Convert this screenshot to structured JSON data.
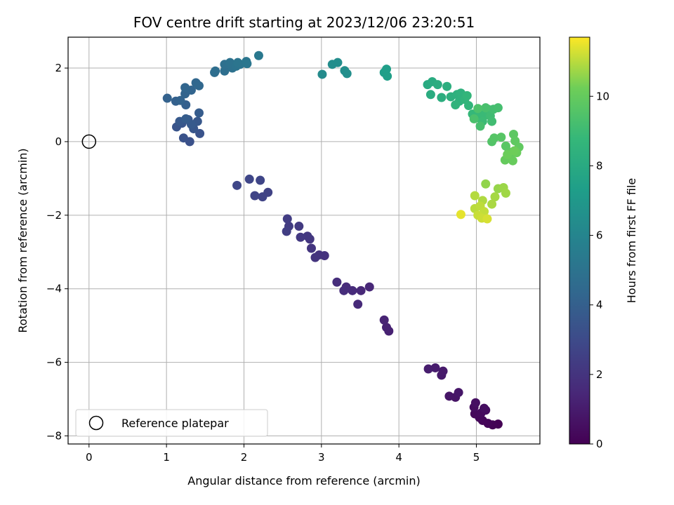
{
  "chart_data": {
    "type": "scatter",
    "title": "FOV centre drift starting at 2023/12/06 23:20:51",
    "xlabel": "Angular distance from reference (arcmin)",
    "ylabel": "Rotation from reference (arcmin)",
    "xlim": [
      -0.27,
      5.82
    ],
    "ylim": [
      -8.22,
      2.84
    ],
    "x_ticks": [
      0,
      1,
      2,
      3,
      4,
      5
    ],
    "y_ticks": [
      -8,
      -6,
      -4,
      -2,
      0,
      2
    ],
    "grid": true,
    "legend": {
      "placement": "lower-left",
      "entries": [
        "Reference platepar"
      ]
    },
    "reference_point": {
      "x": 0,
      "y": 0
    },
    "colorbar": {
      "label": "Hours from first FF file",
      "colormap": "viridis",
      "range": [
        0,
        11.7
      ],
      "ticks": [
        0,
        2,
        4,
        6,
        8,
        10
      ]
    },
    "points": [
      {
        "x": 5.28,
        "y": -7.68,
        "t": 0.05
      },
      {
        "x": 5.21,
        "y": -7.7,
        "t": 0.1
      },
      {
        "x": 5.15,
        "y": -7.66,
        "t": 0.15
      },
      {
        "x": 5.08,
        "y": -7.58,
        "t": 0.2
      },
      {
        "x": 5.04,
        "y": -7.5,
        "t": 0.25
      },
      {
        "x": 4.98,
        "y": -7.4,
        "t": 0.3
      },
      {
        "x": 5.06,
        "y": -7.38,
        "t": 0.35
      },
      {
        "x": 5.12,
        "y": -7.3,
        "t": 0.4
      },
      {
        "x": 4.97,
        "y": -7.22,
        "t": 0.45
      },
      {
        "x": 5.1,
        "y": -7.25,
        "t": 0.5
      },
      {
        "x": 4.99,
        "y": -7.1,
        "t": 0.55
      },
      {
        "x": 4.73,
        "y": -6.95,
        "t": 0.7
      },
      {
        "x": 4.65,
        "y": -6.92,
        "t": 0.75
      },
      {
        "x": 4.77,
        "y": -6.82,
        "t": 0.8
      },
      {
        "x": 4.55,
        "y": -6.35,
        "t": 0.9
      },
      {
        "x": 4.57,
        "y": -6.24,
        "t": 0.95
      },
      {
        "x": 4.47,
        "y": -6.15,
        "t": 1.0
      },
      {
        "x": 4.38,
        "y": -6.18,
        "t": 1.05
      },
      {
        "x": 3.87,
        "y": -5.15,
        "t": 1.2
      },
      {
        "x": 3.84,
        "y": -5.05,
        "t": 1.25
      },
      {
        "x": 3.81,
        "y": -4.85,
        "t": 1.3
      },
      {
        "x": 3.62,
        "y": -3.95,
        "t": 1.45
      },
      {
        "x": 3.51,
        "y": -4.05,
        "t": 1.5
      },
      {
        "x": 3.47,
        "y": -4.42,
        "t": 1.55
      },
      {
        "x": 3.4,
        "y": -4.05,
        "t": 1.6
      },
      {
        "x": 3.32,
        "y": -3.95,
        "t": 1.65
      },
      {
        "x": 3.29,
        "y": -4.05,
        "t": 1.7
      },
      {
        "x": 3.2,
        "y": -3.82,
        "t": 1.75
      },
      {
        "x": 3.04,
        "y": -3.1,
        "t": 1.9
      },
      {
        "x": 2.97,
        "y": -3.08,
        "t": 1.95
      },
      {
        "x": 2.92,
        "y": -3.15,
        "t": 2.0
      },
      {
        "x": 2.87,
        "y": -2.9,
        "t": 2.05
      },
      {
        "x": 2.85,
        "y": -2.65,
        "t": 2.1
      },
      {
        "x": 2.82,
        "y": -2.57,
        "t": 2.15
      },
      {
        "x": 2.73,
        "y": -2.6,
        "t": 2.2
      },
      {
        "x": 2.71,
        "y": -2.3,
        "t": 2.25
      },
      {
        "x": 2.58,
        "y": -2.3,
        "t": 2.35
      },
      {
        "x": 2.56,
        "y": -2.1,
        "t": 2.4
      },
      {
        "x": 2.55,
        "y": -2.44,
        "t": 2.45
      },
      {
        "x": 2.31,
        "y": -1.38,
        "t": 2.6
      },
      {
        "x": 2.24,
        "y": -1.5,
        "t": 2.65
      },
      {
        "x": 2.14,
        "y": -1.47,
        "t": 2.7
      },
      {
        "x": 2.21,
        "y": -1.05,
        "t": 2.75
      },
      {
        "x": 2.07,
        "y": -1.02,
        "t": 2.8
      },
      {
        "x": 1.91,
        "y": -1.19,
        "t": 2.85
      },
      {
        "x": 1.3,
        "y": 0.0,
        "t": 3.3
      },
      {
        "x": 1.22,
        "y": 0.1,
        "t": 3.35
      },
      {
        "x": 1.43,
        "y": 0.22,
        "t": 3.4
      },
      {
        "x": 1.13,
        "y": 0.4,
        "t": 3.45
      },
      {
        "x": 1.2,
        "y": 0.5,
        "t": 3.5
      },
      {
        "x": 1.35,
        "y": 0.35,
        "t": 3.55
      },
      {
        "x": 1.28,
        "y": 0.6,
        "t": 3.6
      },
      {
        "x": 1.4,
        "y": 0.55,
        "t": 3.65
      },
      {
        "x": 1.17,
        "y": 0.55,
        "t": 3.7
      },
      {
        "x": 1.32,
        "y": 0.47,
        "t": 3.75
      },
      {
        "x": 1.42,
        "y": 0.78,
        "t": 3.8
      },
      {
        "x": 1.25,
        "y": 0.62,
        "t": 3.85
      },
      {
        "x": 1.25,
        "y": 1.0,
        "t": 4.0
      },
      {
        "x": 1.12,
        "y": 1.1,
        "t": 4.05
      },
      {
        "x": 1.01,
        "y": 1.18,
        "t": 4.1
      },
      {
        "x": 1.18,
        "y": 1.12,
        "t": 4.15
      },
      {
        "x": 1.24,
        "y": 1.3,
        "t": 4.2
      },
      {
        "x": 1.32,
        "y": 1.4,
        "t": 4.25
      },
      {
        "x": 1.24,
        "y": 1.47,
        "t": 4.3
      },
      {
        "x": 1.38,
        "y": 1.6,
        "t": 4.35
      },
      {
        "x": 1.42,
        "y": 1.52,
        "t": 4.4
      },
      {
        "x": 1.62,
        "y": 1.88,
        "t": 4.7
      },
      {
        "x": 1.63,
        "y": 1.92,
        "t": 4.75
      },
      {
        "x": 1.75,
        "y": 1.92,
        "t": 4.8
      },
      {
        "x": 1.75,
        "y": 2.1,
        "t": 4.85
      },
      {
        "x": 1.85,
        "y": 2.0,
        "t": 4.9
      },
      {
        "x": 1.82,
        "y": 2.15,
        "t": 4.95
      },
      {
        "x": 1.9,
        "y": 2.05,
        "t": 5.0
      },
      {
        "x": 1.95,
        "y": 2.1,
        "t": 5.05
      },
      {
        "x": 1.92,
        "y": 2.15,
        "t": 5.1
      },
      {
        "x": 2.03,
        "y": 2.18,
        "t": 5.15
      },
      {
        "x": 2.04,
        "y": 2.12,
        "t": 5.2
      },
      {
        "x": 2.19,
        "y": 2.34,
        "t": 5.3
      },
      {
        "x": 3.01,
        "y": 1.83,
        "t": 6.3
      },
      {
        "x": 3.14,
        "y": 2.1,
        "t": 6.4
      },
      {
        "x": 3.21,
        "y": 2.15,
        "t": 6.45
      },
      {
        "x": 3.3,
        "y": 1.93,
        "t": 6.5
      },
      {
        "x": 3.33,
        "y": 1.85,
        "t": 6.55
      },
      {
        "x": 3.81,
        "y": 1.88,
        "t": 7.3
      },
      {
        "x": 3.84,
        "y": 1.97,
        "t": 7.35
      },
      {
        "x": 3.85,
        "y": 1.78,
        "t": 7.4
      },
      {
        "x": 4.37,
        "y": 1.55,
        "t": 8.0
      },
      {
        "x": 4.43,
        "y": 1.63,
        "t": 8.05
      },
      {
        "x": 4.41,
        "y": 1.28,
        "t": 8.1
      },
      {
        "x": 4.5,
        "y": 1.55,
        "t": 8.15
      },
      {
        "x": 4.55,
        "y": 1.2,
        "t": 8.2
      },
      {
        "x": 4.62,
        "y": 1.5,
        "t": 8.25
      },
      {
        "x": 4.67,
        "y": 1.22,
        "t": 8.3
      },
      {
        "x": 4.75,
        "y": 1.28,
        "t": 8.35
      },
      {
        "x": 4.78,
        "y": 1.1,
        "t": 8.4
      },
      {
        "x": 4.8,
        "y": 1.32,
        "t": 8.45
      },
      {
        "x": 4.73,
        "y": 1.0,
        "t": 8.5
      },
      {
        "x": 4.85,
        "y": 1.15,
        "t": 8.55
      },
      {
        "x": 4.9,
        "y": 0.98,
        "t": 8.6
      },
      {
        "x": 4.88,
        "y": 1.25,
        "t": 8.65
      },
      {
        "x": 4.95,
        "y": 0.75,
        "t": 8.75
      },
      {
        "x": 5.02,
        "y": 0.65,
        "t": 8.8
      },
      {
        "x": 5.05,
        "y": 0.8,
        "t": 8.85
      },
      {
        "x": 5.1,
        "y": 0.7,
        "t": 8.9
      },
      {
        "x": 5.08,
        "y": 0.55,
        "t": 8.95
      },
      {
        "x": 5.15,
        "y": 0.88,
        "t": 9.0
      },
      {
        "x": 5.18,
        "y": 0.7,
        "t": 9.05
      },
      {
        "x": 5.2,
        "y": 0.55,
        "t": 9.1
      },
      {
        "x": 5.22,
        "y": 0.88,
        "t": 9.15
      },
      {
        "x": 5.28,
        "y": 0.92,
        "t": 9.2
      },
      {
        "x": 5.05,
        "y": 0.42,
        "t": 9.25
      },
      {
        "x": 5.12,
        "y": 0.92,
        "t": 9.3
      },
      {
        "x": 4.97,
        "y": 0.62,
        "t": 9.35
      },
      {
        "x": 5.02,
        "y": 0.9,
        "t": 9.4
      },
      {
        "x": 5.2,
        "y": 0.0,
        "t": 9.55
      },
      {
        "x": 5.23,
        "y": 0.1,
        "t": 9.6
      },
      {
        "x": 5.32,
        "y": 0.12,
        "t": 9.65
      },
      {
        "x": 5.38,
        "y": -0.12,
        "t": 9.7
      },
      {
        "x": 5.42,
        "y": -0.28,
        "t": 9.75
      },
      {
        "x": 5.48,
        "y": 0.2,
        "t": 9.8
      },
      {
        "x": 5.5,
        "y": 0.02,
        "t": 9.85
      },
      {
        "x": 5.55,
        "y": -0.15,
        "t": 9.9
      },
      {
        "x": 5.44,
        "y": -0.42,
        "t": 9.95
      },
      {
        "x": 5.37,
        "y": -0.5,
        "t": 10.0
      },
      {
        "x": 5.47,
        "y": -0.52,
        "t": 10.05
      },
      {
        "x": 5.52,
        "y": -0.3,
        "t": 10.1
      },
      {
        "x": 5.4,
        "y": -0.35,
        "t": 10.15
      },
      {
        "x": 5.49,
        "y": -0.25,
        "t": 10.2
      },
      {
        "x": 5.12,
        "y": -1.15,
        "t": 10.6
      },
      {
        "x": 5.28,
        "y": -1.28,
        "t": 10.65
      },
      {
        "x": 5.35,
        "y": -1.25,
        "t": 10.7
      },
      {
        "x": 5.38,
        "y": -1.4,
        "t": 10.75
      },
      {
        "x": 5.24,
        "y": -1.5,
        "t": 10.8
      },
      {
        "x": 5.2,
        "y": -1.7,
        "t": 10.85
      },
      {
        "x": 5.08,
        "y": -1.6,
        "t": 10.9
      },
      {
        "x": 4.98,
        "y": -1.47,
        "t": 10.95
      },
      {
        "x": 4.98,
        "y": -1.82,
        "t": 11.0
      },
      {
        "x": 5.05,
        "y": -1.75,
        "t": 11.05
      },
      {
        "x": 5.1,
        "y": -1.9,
        "t": 11.1
      },
      {
        "x": 5.02,
        "y": -2.0,
        "t": 11.15
      },
      {
        "x": 5.07,
        "y": -2.08,
        "t": 11.2
      },
      {
        "x": 5.14,
        "y": -2.1,
        "t": 11.3
      },
      {
        "x": 4.8,
        "y": -1.98,
        "t": 11.45
      }
    ]
  }
}
